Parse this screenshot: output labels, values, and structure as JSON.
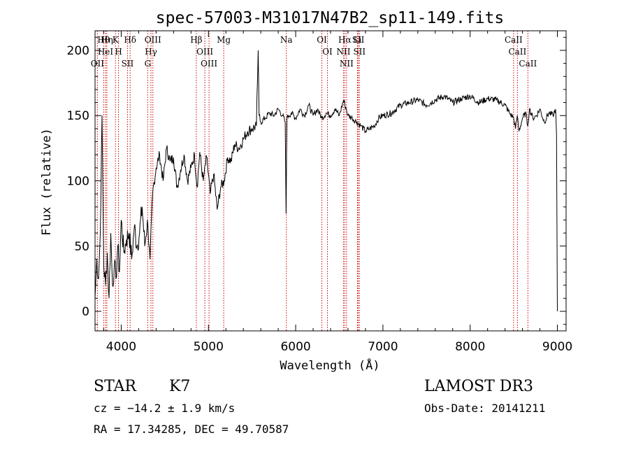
{
  "chart_data": {
    "type": "line",
    "title": "spec-57003-M31017N47B2_sp11-149.fits",
    "xlabel": "Wavelength (Å)",
    "ylabel": "Flux (relative)",
    "xlim": [
      3700,
      9100
    ],
    "ylim": [
      -15,
      215
    ],
    "x_ticks": [
      4000,
      5000,
      6000,
      7000,
      8000,
      9000
    ],
    "y_ticks": [
      0,
      50,
      100,
      150,
      200
    ],
    "grid": false,
    "line_color": "#000000",
    "marker_color": "#cc0000",
    "series": [
      {
        "name": "flux",
        "x": [
          3700,
          3720,
          3740,
          3760,
          3780,
          3800,
          3820,
          3840,
          3860,
          3880,
          3900,
          3920,
          3940,
          3960,
          3980,
          4000,
          4030,
          4060,
          4090,
          4120,
          4150,
          4180,
          4210,
          4240,
          4270,
          4300,
          4330,
          4360,
          4400,
          4440,
          4480,
          4520,
          4560,
          4600,
          4640,
          4680,
          4720,
          4760,
          4800,
          4840,
          4870,
          4900,
          4940,
          4980,
          5020,
          5060,
          5100,
          5140,
          5180,
          5220,
          5260,
          5300,
          5350,
          5400,
          5450,
          5500,
          5550,
          5570,
          5580,
          5600,
          5650,
          5700,
          5750,
          5800,
          5850,
          5880,
          5890,
          5895,
          5900,
          5920,
          5950,
          6000,
          6050,
          6100,
          6150,
          6200,
          6250,
          6300,
          6350,
          6400,
          6450,
          6500,
          6550,
          6565,
          6580,
          6600,
          6650,
          6700,
          6750,
          6800,
          6850,
          6900,
          6950,
          7000,
          7100,
          7200,
          7300,
          7400,
          7500,
          7600,
          7700,
          7800,
          7900,
          8000,
          8100,
          8200,
          8300,
          8400,
          8450,
          8500,
          8520,
          8540,
          8560,
          8600,
          8640,
          8660,
          8680,
          8720,
          8760,
          8800,
          8850,
          8900,
          8950,
          8980,
          8990,
          9000
        ],
        "y": [
          10,
          40,
          25,
          60,
          150,
          35,
          20,
          45,
          10,
          60,
          20,
          35,
          25,
          50,
          30,
          70,
          45,
          55,
          60,
          40,
          65,
          50,
          60,
          80,
          50,
          70,
          40,
          90,
          110,
          120,
          100,
          125,
          115,
          118,
          95,
          108,
          120,
          100,
          110,
          120,
          95,
          122,
          100,
          118,
          90,
          105,
          78,
          95,
          100,
          118,
          115,
          128,
          125,
          132,
          138,
          140,
          142,
          200,
          150,
          145,
          148,
          152,
          150,
          155,
          150,
          145,
          75,
          120,
          148,
          150,
          152,
          148,
          155,
          150,
          158,
          150,
          155,
          148,
          152,
          150,
          155,
          150,
          162,
          158,
          155,
          150,
          148,
          145,
          142,
          138,
          140,
          142,
          148,
          150,
          152,
          158,
          160,
          162,
          158,
          162,
          165,
          160,
          163,
          165,
          160,
          163,
          162,
          158,
          152,
          148,
          140,
          150,
          138,
          148,
          152,
          142,
          155,
          148,
          150,
          155,
          145,
          152,
          150,
          155,
          135,
          0
        ]
      }
    ],
    "line_markers": [
      {
        "label": "Hθ",
        "x": 3798
      },
      {
        "label": "HeI",
        "x": 3820
      },
      {
        "label": "OII",
        "x": 3727
      },
      {
        "label": "Hη",
        "x": 3835
      },
      {
        "label": "K",
        "x": 3934
      },
      {
        "label": "H",
        "x": 3969
      },
      {
        "label": "Hδ",
        "x": 4102
      },
      {
        "label": "SII",
        "x": 4072
      },
      {
        "label": "OIII",
        "x": 4363
      },
      {
        "label": "Hγ",
        "x": 4341
      },
      {
        "label": "G",
        "x": 4304
      },
      {
        "label": "Hβ",
        "x": 4861
      },
      {
        "label": "OIII",
        "x": 4959
      },
      {
        "label": "OIII",
        "x": 5007
      },
      {
        "label": "Mg",
        "x": 5175
      },
      {
        "label": "Na",
        "x": 5893
      },
      {
        "label": "OI",
        "x": 6300
      },
      {
        "label": "OI",
        "x": 6364
      },
      {
        "label": "Hα",
        "x": 6563
      },
      {
        "label": "NII",
        "x": 6548
      },
      {
        "label": "NII",
        "x": 6583
      },
      {
        "label": "Li",
        "x": 6708
      },
      {
        "label": "SII",
        "x": 6717
      },
      {
        "label": "SII",
        "x": 6731
      },
      {
        "label": "CaII",
        "x": 8498
      },
      {
        "label": "CaII",
        "x": 8542
      },
      {
        "label": "CaII",
        "x": 8662
      }
    ]
  },
  "info": {
    "object_class": "STAR",
    "subclass": "K7",
    "survey": "LAMOST DR3",
    "redshift_text": "cz = −14.2 ± 1.9 km/s",
    "obs_date_text": "Obs-Date: 20141211",
    "coords_text": "RA =  17.34285, DEC =  49.70587"
  }
}
